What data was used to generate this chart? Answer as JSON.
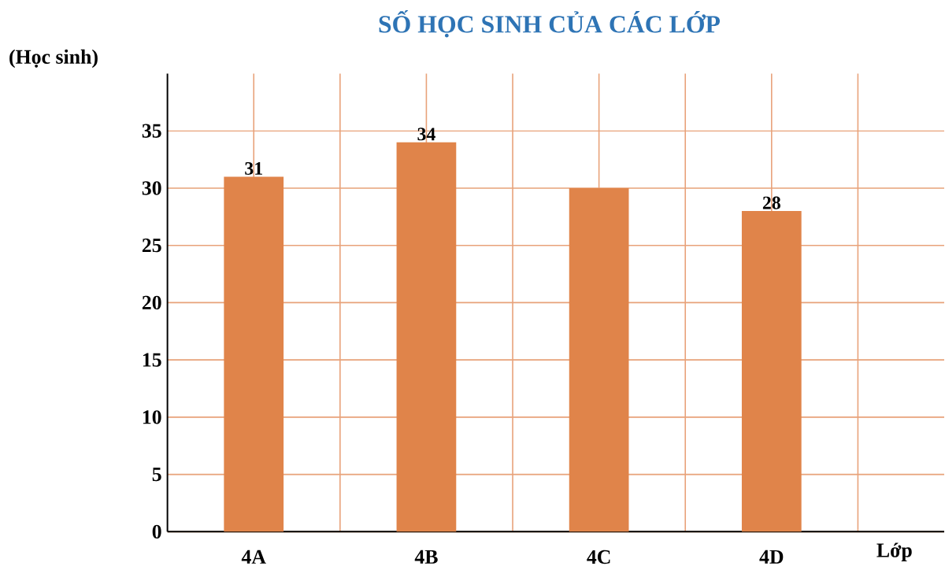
{
  "chart_data": {
    "type": "bar",
    "title": "SỐ HỌC SINH CỦA CÁC LỚP",
    "ylabel": "(Học sinh)",
    "xlabel": "Lớp",
    "categories": [
      "4A",
      "4B",
      "4C",
      "4D"
    ],
    "values": [
      31,
      34,
      30,
      28
    ],
    "value_labels": [
      "31",
      "34",
      null,
      "28"
    ],
    "color": "#e0844a",
    "ylim": [
      0,
      40
    ],
    "yticks": [
      0,
      5,
      10,
      15,
      20,
      25,
      30,
      35
    ],
    "grid": true
  }
}
